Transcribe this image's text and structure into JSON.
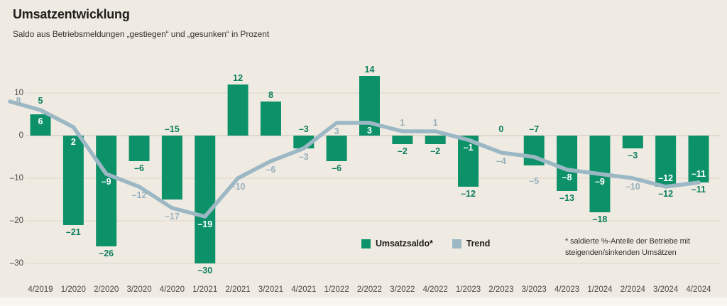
{
  "title": "Umsatzentwicklung",
  "subtitle": "Saldo aus Betriebsmeldungen „gestiegen“ und „gesunken“ in Prozent",
  "legend": {
    "bar_label": "Umsatzsaldo*",
    "trend_label": "Trend"
  },
  "footnote": {
    "line1": "* saldierte %-Anteile der Betriebe mit",
    "line2": "steigenden/sinkenden Umsätzen"
  },
  "colors": {
    "background": "#f0ebe2",
    "bar": "#0d9168",
    "bar_label": "#0b7e5d",
    "trend": "#9cb8c5",
    "trend_label": "#98b0bc",
    "trend_label_on_bar": "#ffffff",
    "grid": "#ddd6c8",
    "zero_line": "#cbc4b5",
    "title_text": "#1d1d1b",
    "text": "#34332e",
    "axis_text": "#4a4941",
    "footer_strip": "#f8f6f1"
  },
  "chart_data": {
    "type": "bar",
    "title": "Umsatzentwicklung",
    "subtitle": "Saldo aus Betriebsmeldungen „gestiegen“ und „gesunken“ in Prozent",
    "unit": "Prozent",
    "categories": [
      "4/2019",
      "1/2020",
      "2/2020",
      "3/2020",
      "4/2020",
      "1/2021",
      "2/2021",
      "3/2021",
      "4/2021",
      "1/2022",
      "2/2022",
      "3/2022",
      "4/2022",
      "1/2023",
      "2/2023",
      "3/2023",
      "4/2023",
      "1/2024",
      "2/2024",
      "3/2024",
      "4/2024"
    ],
    "series": [
      {
        "name": "Umsatzsaldo",
        "type": "bar",
        "values": [
          5,
          -21,
          -26,
          -6,
          -15,
          -30,
          12,
          8,
          -3,
          -6,
          14,
          -2,
          -2,
          -12,
          0,
          -7,
          -13,
          -18,
          -3,
          -12,
          -11
        ]
      },
      {
        "name": "Trend",
        "type": "line",
        "values": [
          6,
          2,
          -9,
          -12,
          -17,
          -19,
          -10,
          -6,
          -3,
          3,
          3,
          1,
          1,
          -1,
          -4,
          -5,
          -8,
          -9,
          -10,
          -12,
          -11
        ],
        "lead_in_value": 8,
        "lead_in_label": "8"
      }
    ],
    "y_ticks": [
      10,
      0,
      -10,
      -20,
      -30
    ],
    "ylim": [
      -33,
      16
    ],
    "grid": true,
    "legend_position": "bottom-center",
    "label_layout": {
      "bar_label_pos": [
        "above",
        "below",
        "below",
        "below",
        "zero",
        "below",
        "above",
        "above",
        "zero",
        "below",
        "above",
        "below",
        "below",
        "below",
        "zero",
        "zero",
        "below",
        "below",
        "below",
        "below",
        "below"
      ],
      "trend_label_pos": [
        "inside",
        "inside",
        "inside",
        "below",
        "below",
        "inside",
        "below",
        "below",
        "below",
        "below",
        "inside",
        "above",
        "above",
        "inside",
        "below",
        "below",
        "inside",
        "inside",
        "below",
        "inside",
        "inside"
      ],
      "bar_label_dy": {
        "0": -10
      },
      "trend_label_dy": {
        "15": 22
      }
    }
  }
}
